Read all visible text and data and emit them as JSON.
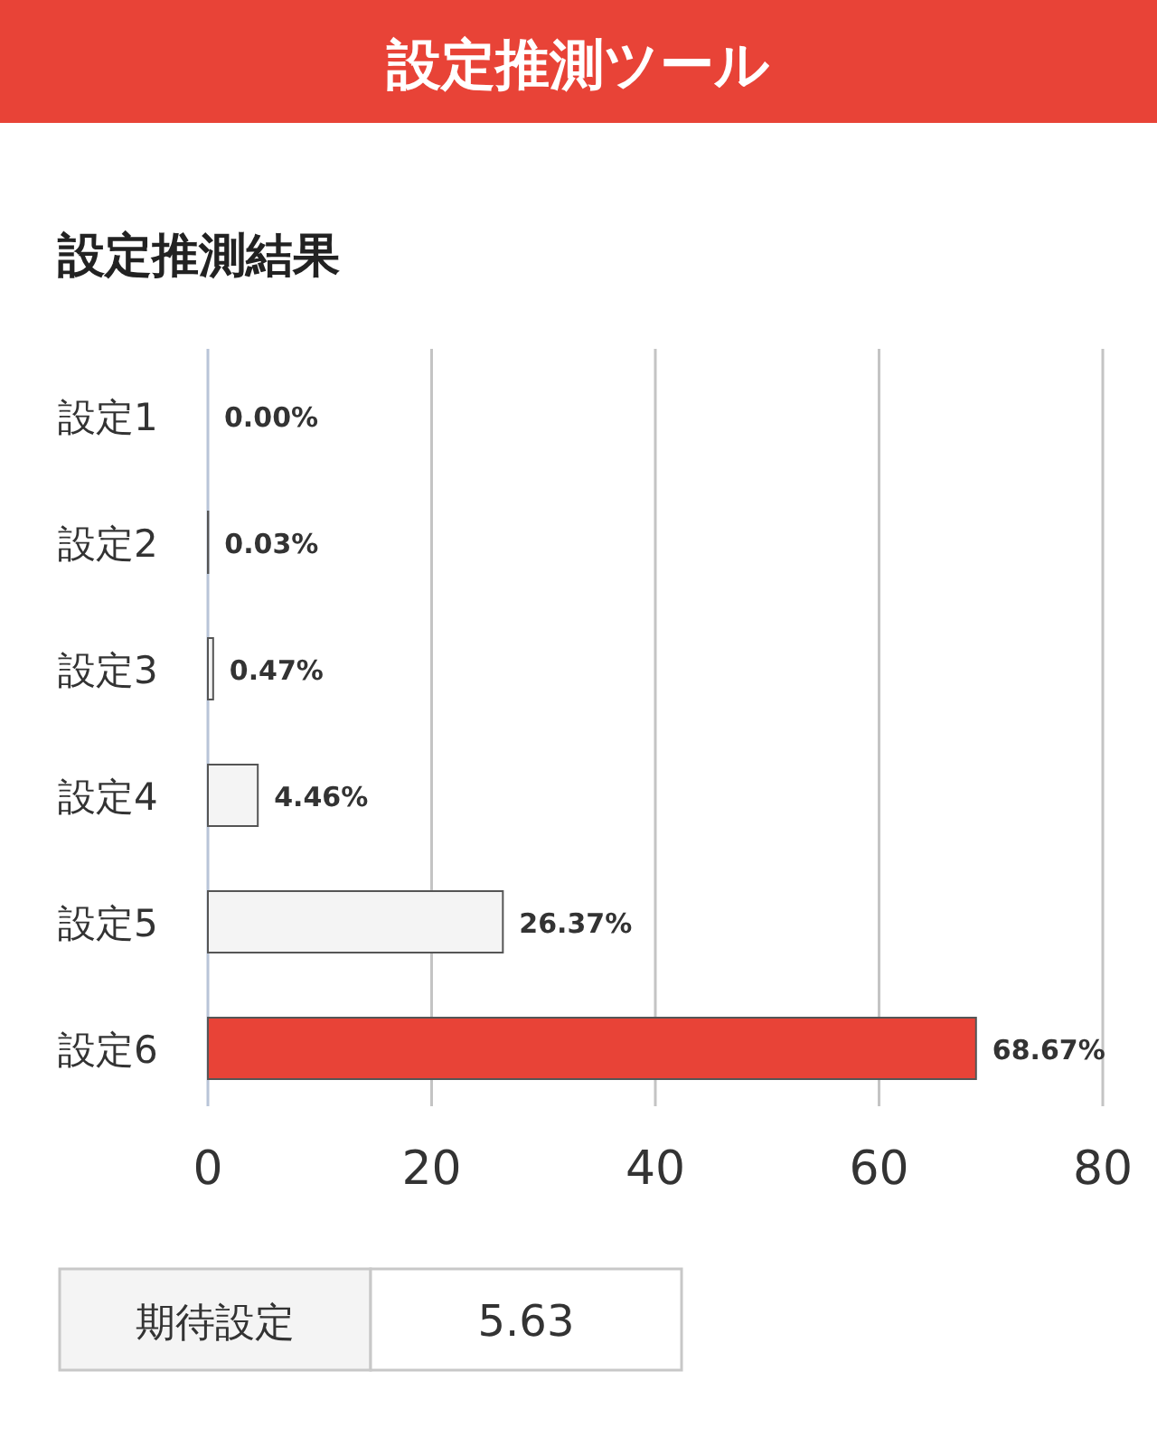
{
  "chart_data": {
    "type": "bar",
    "orientation": "horizontal",
    "title": "設定推測ツール",
    "subtitle": "設定推測結果",
    "categories": [
      "設定1",
      "設定2",
      "設定3",
      "設定4",
      "設定5",
      "設定6"
    ],
    "values": [
      0,
      0.03,
      0.47,
      4.46,
      26.37,
      68.67
    ],
    "value_labels": [
      "0.00%",
      "0.03%",
      "0.47%",
      "4.46%",
      "26.37%",
      "68.67%"
    ],
    "colors": [
      "#f4f4f4",
      "#f4f4f4",
      "#f4f4f4",
      "#f4f4f4",
      "#f4f4f4",
      "#e84337"
    ],
    "xlim": [
      0,
      80
    ],
    "xticks": [
      0,
      20,
      40,
      60,
      80
    ],
    "grid": "x",
    "annotations": [
      "期待設定",
      "5.63"
    ]
  }
}
